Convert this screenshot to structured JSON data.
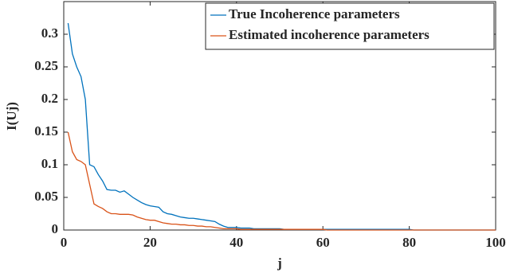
{
  "chart_data": {
    "type": "line",
    "x_label": "j",
    "y_label": "I(Uj)",
    "x": [
      1,
      2,
      3,
      4,
      5,
      6,
      7,
      8,
      9,
      10,
      11,
      12,
      13,
      14,
      15,
      16,
      17,
      18,
      19,
      20,
      21,
      22,
      23,
      24,
      25,
      26,
      27,
      28,
      29,
      30,
      31,
      32,
      33,
      34,
      35,
      36,
      37,
      38,
      39,
      40,
      41,
      42,
      43,
      44,
      45,
      46,
      47,
      48,
      49,
      50,
      51,
      52,
      53,
      54,
      55,
      56,
      57,
      58,
      59,
      60,
      61,
      62,
      63,
      64,
      65,
      66,
      67,
      68,
      69,
      70,
      71,
      72,
      73,
      74,
      75,
      76,
      77,
      78,
      79,
      80,
      81,
      82,
      83,
      84,
      85,
      86,
      87,
      88,
      89,
      90,
      91,
      92,
      93,
      94,
      95,
      96,
      97,
      98,
      99,
      100
    ],
    "series": [
      {
        "name": "True Incoherence parameters",
        "color": "#0072bd",
        "values": [
          0.317,
          0.27,
          0.25,
          0.235,
          0.2,
          0.1,
          0.097,
          0.085,
          0.075,
          0.062,
          0.061,
          0.061,
          0.058,
          0.06,
          0.055,
          0.05,
          0.046,
          0.042,
          0.039,
          0.037,
          0.036,
          0.035,
          0.028,
          0.025,
          0.024,
          0.022,
          0.02,
          0.019,
          0.018,
          0.018,
          0.017,
          0.016,
          0.015,
          0.014,
          0.013,
          0.009,
          0.006,
          0.004,
          0.004,
          0.004,
          0.003,
          0.003,
          0.003,
          0.002,
          0.002,
          0.002,
          0.002,
          0.002,
          0.002,
          0.002,
          0.001,
          0.001,
          0.001,
          0.001,
          0.001,
          0.001,
          0.001,
          0.001,
          0.001,
          0.001,
          0.001,
          0.001,
          0.001,
          0.001,
          0.001,
          0.001,
          0.001,
          0.001,
          0.001,
          0.001,
          0.001,
          0.001,
          0.001,
          0.001,
          0.001,
          0.001,
          0.001,
          0.001,
          0.001,
          0.001,
          0,
          0,
          0,
          0,
          0,
          0,
          0,
          0,
          0,
          0,
          0,
          0,
          0,
          0,
          0,
          0,
          0,
          0,
          0,
          0
        ]
      },
      {
        "name": "Estimated incoherence parameters",
        "color": "#d95319",
        "values": [
          0.15,
          0.12,
          0.108,
          0.105,
          0.1,
          0.07,
          0.04,
          0.036,
          0.033,
          0.028,
          0.025,
          0.025,
          0.024,
          0.024,
          0.024,
          0.023,
          0.02,
          0.018,
          0.016,
          0.015,
          0.015,
          0.013,
          0.011,
          0.01,
          0.009,
          0.009,
          0.008,
          0.008,
          0.007,
          0.007,
          0.006,
          0.006,
          0.005,
          0.005,
          0.004,
          0.003,
          0.002,
          0.002,
          0.002,
          0.002,
          0.001,
          0.001,
          0.001,
          0.001,
          0.001,
          0.001,
          0.001,
          0.001,
          0.001,
          0.001,
          0.001,
          0.001,
          0.001,
          0.001,
          0.001,
          0.001,
          0.001,
          0.001,
          0.001,
          0.001,
          0,
          0,
          0,
          0,
          0,
          0,
          0,
          0,
          0,
          0,
          0,
          0,
          0,
          0,
          0,
          0,
          0,
          0,
          0,
          0,
          0,
          0,
          0,
          0,
          0,
          0,
          0,
          0,
          0,
          0,
          0,
          0,
          0,
          0,
          0,
          0,
          0,
          0,
          0,
          0
        ]
      }
    ],
    "xlim": [
      0,
      100
    ],
    "xticks": [
      0,
      20,
      40,
      60,
      80,
      100
    ],
    "ylim": [
      0,
      0.35
    ],
    "yticks": [
      0,
      0.05,
      0.1,
      0.15,
      0.2,
      0.25,
      0.3
    ],
    "grid": false,
    "legend": "upper right"
  }
}
